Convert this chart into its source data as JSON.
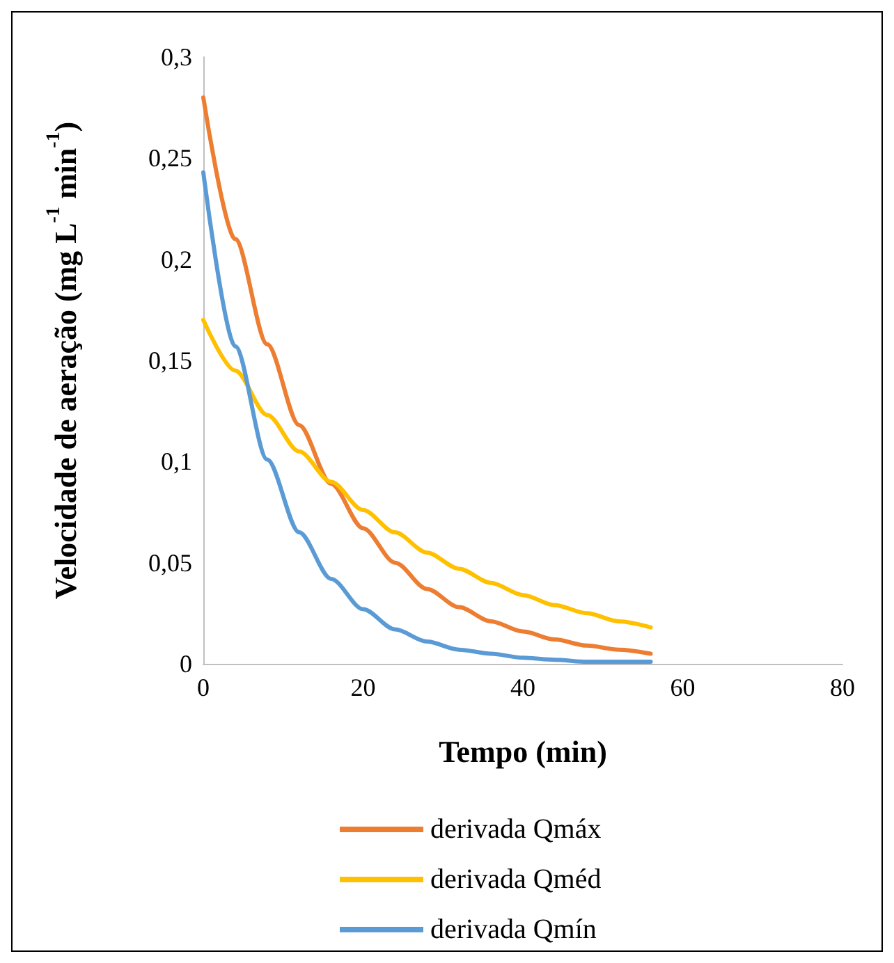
{
  "chart_data": {
    "type": "line",
    "xlabel": "Tempo (min)",
    "ylabel": "Velocidade de aeração (mg L$^{-1}$ min$^{-1}$)",
    "x": [
      0,
      4,
      8,
      12,
      16,
      20,
      24,
      28,
      32,
      36,
      40,
      44,
      48,
      52,
      56
    ],
    "series": [
      {
        "name": "derivada Qmáx",
        "color": "#ed7d31",
        "values": [
          0.28,
          0.21,
          0.158,
          0.118,
          0.089,
          0.067,
          0.05,
          0.037,
          0.028,
          0.021,
          0.016,
          0.012,
          0.009,
          0.007,
          0.005
        ]
      },
      {
        "name": "derivada Qméd",
        "color": "#ffc000",
        "values": [
          0.17,
          0.145,
          0.123,
          0.105,
          0.09,
          0.076,
          0.065,
          0.055,
          0.047,
          0.04,
          0.034,
          0.029,
          0.025,
          0.021,
          0.018
        ]
      },
      {
        "name": "derivada Qmín",
        "color": "#5b9bd5",
        "values": [
          0.243,
          0.157,
          0.101,
          0.065,
          0.042,
          0.027,
          0.017,
          0.011,
          0.007,
          0.005,
          0.003,
          0.002,
          0.001,
          0.001,
          0.001
        ]
      }
    ],
    "xlim": [
      0,
      80
    ],
    "xticks": [
      0,
      20,
      40,
      60,
      80
    ],
    "ylim": [
      0,
      0.3
    ],
    "yticks": [
      {
        "value": 0,
        "label": "0"
      },
      {
        "value": 0.05,
        "label": "0,05"
      },
      {
        "value": 0.1,
        "label": "0,1"
      },
      {
        "value": 0.15,
        "label": "0,15"
      },
      {
        "value": 0.2,
        "label": "0,2"
      },
      {
        "value": 0.25,
        "label": "0,25"
      },
      {
        "value": 0.3,
        "label": "0,3"
      }
    ],
    "grid": false,
    "legend": "bottom",
    "marker": "none",
    "line_style": "solid"
  }
}
